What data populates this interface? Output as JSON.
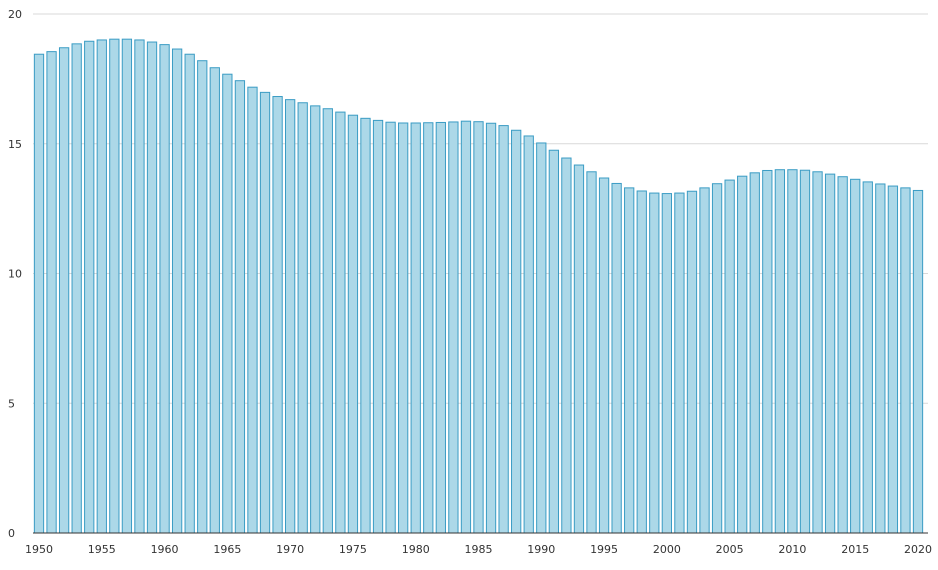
{
  "chart_data": {
    "type": "bar",
    "title": "",
    "xlabel": "",
    "ylabel": "",
    "ylim": [
      0,
      20
    ],
    "yticks": [
      0,
      5,
      10,
      15,
      20
    ],
    "grid": true,
    "legend": "none",
    "x_tick_labels": [
      "1950",
      "1955",
      "1960",
      "1965",
      "1970",
      "1975",
      "1980",
      "1985",
      "1990",
      "1995",
      "2000",
      "2005",
      "2010",
      "2015",
      "2020"
    ],
    "categories": [
      1950,
      1951,
      1952,
      1953,
      1954,
      1955,
      1956,
      1957,
      1958,
      1959,
      1960,
      1961,
      1962,
      1963,
      1964,
      1965,
      1966,
      1967,
      1968,
      1969,
      1970,
      1971,
      1972,
      1973,
      1974,
      1975,
      1976,
      1977,
      1978,
      1979,
      1980,
      1981,
      1982,
      1983,
      1984,
      1985,
      1986,
      1987,
      1988,
      1989,
      1990,
      1991,
      1992,
      1993,
      1994,
      1995,
      1996,
      1997,
      1998,
      1999,
      2000,
      2001,
      2002,
      2003,
      2004,
      2005,
      2006,
      2007,
      2008,
      2009,
      2010,
      2011,
      2012,
      2013,
      2014,
      2015,
      2016,
      2017,
      2018,
      2019,
      2020
    ],
    "values": [
      18.45,
      18.55,
      18.7,
      18.85,
      18.95,
      19.0,
      19.03,
      19.03,
      19.0,
      18.92,
      18.82,
      18.65,
      18.45,
      18.2,
      17.93,
      17.68,
      17.43,
      17.18,
      16.98,
      16.82,
      16.7,
      16.58,
      16.46,
      16.35,
      16.22,
      16.1,
      15.98,
      15.9,
      15.83,
      15.8,
      15.8,
      15.81,
      15.82,
      15.84,
      15.87,
      15.85,
      15.79,
      15.7,
      15.52,
      15.3,
      15.03,
      14.75,
      14.45,
      14.18,
      13.92,
      13.68,
      13.47,
      13.3,
      13.18,
      13.1,
      13.08,
      13.1,
      13.17,
      13.3,
      13.46,
      13.6,
      13.75,
      13.88,
      13.97,
      14.0,
      14.0,
      13.98,
      13.92,
      13.83,
      13.73,
      13.63,
      13.53,
      13.45,
      13.37,
      13.3,
      13.2
    ],
    "colors": {
      "bar_fill": "#acd8e8",
      "bar_stroke": "#3a9cc4",
      "grid": "#d9d9d9",
      "axis": "#333333"
    }
  }
}
